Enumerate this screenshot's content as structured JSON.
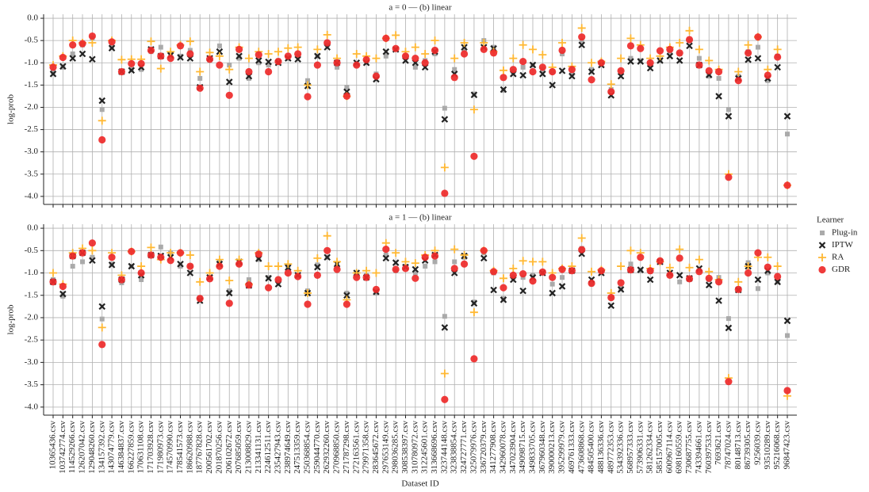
{
  "chart_data": [
    {
      "type": "dot",
      "title": "a = 0 — (b) linear",
      "ylabel": "log-prob",
      "ylim": [
        -4.18,
        0.09
      ],
      "yticks": [
        {
          "value": 0,
          "label": "0.0"
        },
        -0.5,
        {
          "value": -1,
          "label": "-1.0"
        },
        -1.5,
        {
          "value": -2,
          "label": "-2.0"
        },
        -2.5,
        {
          "value": -3,
          "label": "-3.0"
        },
        -3.5,
        {
          "value": -4,
          "label": "-4.0"
        }
      ],
      "grid": true,
      "series": [
        {
          "color": "#aaaaaa",
          "marker": "square",
          "values": [
            -1.2,
            -1.1,
            -0.8,
            -0.6,
            -0.45,
            -2.05,
            -0.65,
            -1.2,
            -1.15,
            -1.15,
            -0.75,
            -0.65,
            -0.8,
            -0.85,
            -0.72,
            -1.35,
            -0.95,
            -0.62,
            -1.05,
            -0.9,
            -1.35,
            -1.0,
            -1.05,
            -0.95,
            -0.9,
            -0.85,
            -1.4,
            -0.85,
            -0.6,
            -1.1,
            -1.55,
            -1.05,
            -1.0,
            -1.25,
            -0.85,
            -0.7,
            -0.85,
            -1.1,
            -0.95,
            -0.8,
            -2.02,
            -1.15,
            -0.7,
            -1.7,
            -0.5,
            -0.65,
            -1.62,
            -1.2,
            -1.1,
            -1.05,
            -1.15,
            -1.2,
            -0.8,
            -1.25,
            -0.5,
            -1.15,
            -1.0,
            -1.6,
            -1.2,
            -0.9,
            -0.95,
            -1.05,
            -0.95,
            -0.75,
            -0.8,
            -0.5,
            -0.9,
            -1.3,
            -1.35,
            -2.05,
            -1.3,
            -0.75,
            -0.65,
            -1.4,
            -0.85,
            -2.6
          ]
        },
        {
          "color": "#222222",
          "marker": "x",
          "values": [
            -1.25,
            -1.08,
            -0.9,
            -0.8,
            -0.92,
            -1.85,
            -0.67,
            -1.2,
            -1.17,
            -1.1,
            -0.7,
            -0.85,
            -0.83,
            -0.88,
            -0.9,
            -1.55,
            -0.9,
            -0.75,
            -1.43,
            -0.85,
            -1.3,
            -0.95,
            -0.98,
            -1.0,
            -0.9,
            -0.92,
            -1.52,
            -0.85,
            -0.65,
            -1.0,
            -1.65,
            -1.0,
            -1.0,
            -1.37,
            -0.75,
            -0.7,
            -0.95,
            -1.0,
            -1.1,
            -0.75,
            -2.27,
            -1.25,
            -0.65,
            -1.72,
            -0.65,
            -0.68,
            -1.6,
            -1.25,
            -1.28,
            -1.05,
            -1.25,
            -1.5,
            -1.18,
            -1.3,
            -0.6,
            -1.2,
            -1.05,
            -1.73,
            -1.3,
            -0.97,
            -0.97,
            -1.12,
            -0.95,
            -0.85,
            -0.95,
            -0.62,
            -1.05,
            -1.27,
            -1.75,
            -2.2,
            -1.35,
            -0.93,
            -0.9,
            -1.35,
            -1.1,
            -2.2
          ]
        },
        {
          "color": "#ffb833",
          "marker": "plus",
          "values": [
            -1.05,
            -0.85,
            -0.5,
            -0.55,
            -0.55,
            -2.3,
            -0.5,
            -0.93,
            -0.92,
            -0.92,
            -0.52,
            -1.13,
            -0.75,
            -0.6,
            -0.52,
            -1.2,
            -0.77,
            -0.85,
            -1.15,
            -0.65,
            -0.9,
            -0.75,
            -0.8,
            -0.75,
            -0.67,
            -0.65,
            -1.5,
            -0.7,
            -0.37,
            -0.9,
            -1.75,
            -0.8,
            -0.85,
            -0.9,
            -0.45,
            -0.38,
            -0.75,
            -0.65,
            -0.8,
            -0.5,
            -3.35,
            -0.9,
            -0.55,
            -2.05,
            -0.55,
            -0.75,
            -1.17,
            -0.9,
            -0.6,
            -0.7,
            -0.82,
            -1.1,
            -0.55,
            -1.08,
            -0.22,
            -1.0,
            -0.97,
            -1.48,
            -0.9,
            -0.45,
            -0.6,
            -0.9,
            -0.85,
            -0.65,
            -0.55,
            -0.28,
            -0.7,
            -0.95,
            -1.15,
            -3.5,
            -1.2,
            -0.6,
            -0.42,
            -1.15,
            -0.7,
            -3.75
          ]
        },
        {
          "color": "#ee2a2a",
          "marker": "circle",
          "values": [
            -1.1,
            -0.88,
            -0.6,
            -0.57,
            -0.4,
            -2.73,
            -0.53,
            -1.2,
            -1.02,
            -1.02,
            -0.72,
            -0.85,
            -0.9,
            -0.62,
            -0.8,
            -1.57,
            -0.92,
            -1.05,
            -1.73,
            -0.7,
            -1.2,
            -0.82,
            -1.2,
            -0.97,
            -0.85,
            -0.8,
            -1.76,
            -1.05,
            -0.55,
            -1.0,
            -1.75,
            -1.05,
            -0.93,
            -1.3,
            -0.45,
            -0.68,
            -0.85,
            -0.9,
            -1.0,
            -0.72,
            -3.93,
            -1.33,
            -0.8,
            -3.1,
            -0.7,
            -0.78,
            -1.33,
            -1.15,
            -0.97,
            -1.2,
            -1.1,
            -1.2,
            -0.72,
            -1.15,
            -0.42,
            -1.38,
            -1.0,
            -1.65,
            -1.18,
            -0.62,
            -0.68,
            -1.0,
            -0.73,
            -0.7,
            -0.78,
            -0.48,
            -1.05,
            -1.18,
            -1.2,
            -3.57,
            -1.4,
            -0.78,
            -0.42,
            -1.28,
            -0.87,
            -3.75
          ]
        }
      ]
    },
    {
      "type": "dot",
      "title": "a = 1 — (b) linear",
      "ylabel": "log-prob",
      "xlabel": "Dataset ID",
      "legend_title": "Learner",
      "legend": "outside right",
      "categories": [
        "10365436.csv",
        "103742774.csv",
        "114529266.csv",
        "126207042.csv",
        "129048260.csv",
        "134157392.csv",
        "143074779.csv",
        "146384837.csv",
        "166227859.csv",
        "170631108.csv",
        "171703928.csv",
        "171980973.csv",
        "174570990.csv",
        "178541573.csv",
        "186620988.csv",
        "187767828.csv",
        "200561702.csv",
        "201870256.csv",
        "206102672.csv",
        "207685059.csv",
        "213008829.csv",
        "213341131.csv",
        "224612511.csv",
        "235427943.csv",
        "238974649.csv",
        "247513359.csv",
        "250368854.csv",
        "259044770.csv",
        "262932260.csv",
        "270968850.csv",
        "271787298.csv",
        "272163561.csv",
        "279971358.csv",
        "283645672.csv",
        "297653149.csv",
        "298036285.csv",
        "308538397.csv",
        "310780972.csv",
        "312245601.csv",
        "313668696.csv",
        "323744148.csv",
        "323838854.csv",
        "324727771.csv",
        "325079976.csv",
        "336720379.csv",
        "341277908.csv",
        "342960078.csv",
        "347023904.csv",
        "349098715.csv",
        "349833705.csv",
        "367960348.csv",
        "390000213.csv",
        "395299979.csv",
        "469761333.csv",
        "473608868.csv",
        "484505400.csv",
        "488136336.csv",
        "489772353.csv",
        "534392336.csv",
        "568957333.csv",
        "573906331.csv",
        "581262334.csv",
        "585157005.csv",
        "600967114.csv",
        "698160559.csv",
        "730687755.csv",
        "743394661.csv",
        "760397533.csv",
        "7693621.csv",
        "78747024.csv",
        "80148713.csv",
        "86739305.csv",
        "9256039.csv",
        "93510289.csv",
        "95216068.csv",
        "96847423.csv"
      ],
      "ylim": [
        -4.18,
        0.09
      ],
      "yticks": [
        {
          "value": 0,
          "label": "0.0"
        },
        -0.5,
        {
          "value": -1,
          "label": "-1.0"
        },
        -1.5,
        {
          "value": -2,
          "label": "-2.0"
        },
        -2.5,
        {
          "value": -3,
          "label": "-3.0"
        },
        -3.5,
        {
          "value": -4,
          "label": "-4.0"
        }
      ],
      "grid": true,
      "series": [
        {
          "name": "Plug-in",
          "color": "#aaaaaa",
          "marker": "square",
          "values": [
            -1.15,
            -1.52,
            -0.85,
            -0.75,
            -0.65,
            -2.03,
            -0.8,
            -1.22,
            -0.85,
            -1.15,
            -0.6,
            -0.42,
            -0.55,
            -0.85,
            -0.85,
            -1.55,
            -1.1,
            -0.75,
            -1.4,
            -0.8,
            -1.15,
            -0.7,
            -1.1,
            -1.2,
            -0.85,
            -1.05,
            -1.4,
            -0.82,
            -0.65,
            -0.85,
            -1.45,
            -1.05,
            -1.05,
            -1.45,
            -0.6,
            -0.95,
            -0.85,
            -1.0,
            -0.85,
            -0.75,
            -1.97,
            -0.75,
            -0.65,
            -1.65,
            -0.55,
            -1.0,
            -1.57,
            -1.1,
            -1.1,
            -1.05,
            -1.0,
            -1.25,
            -1.1,
            -0.95,
            -0.45,
            -1.25,
            -1.0,
            -1.55,
            -1.35,
            -0.8,
            -0.95,
            -0.97,
            -0.75,
            -1.05,
            -1.2,
            -1.15,
            -0.95,
            -1.15,
            -1.1,
            -2.02,
            -1.35,
            -0.77,
            -1.35,
            -1.0,
            -1.2,
            -2.4
          ]
        },
        {
          "name": "IPTW",
          "color": "#222222",
          "marker": "x",
          "values": [
            -1.2,
            -1.47,
            -0.62,
            -0.55,
            -0.72,
            -1.75,
            -0.82,
            -1.15,
            -0.85,
            -1.05,
            -0.6,
            -0.62,
            -0.65,
            -0.8,
            -1.0,
            -1.62,
            -1.1,
            -0.8,
            -1.45,
            -0.75,
            -1.28,
            -0.68,
            -1.12,
            -1.25,
            -0.88,
            -1.05,
            -1.45,
            -0.87,
            -0.65,
            -0.8,
            -1.5,
            -1.0,
            -1.1,
            -1.42,
            -0.67,
            -0.77,
            -0.87,
            -0.92,
            -0.72,
            -0.6,
            -2.22,
            -1.0,
            -0.62,
            -1.68,
            -0.67,
            -1.38,
            -1.6,
            -1.15,
            -1.4,
            -1.1,
            -1.0,
            -1.45,
            -1.3,
            -0.95,
            -0.57,
            -1.15,
            -1.0,
            -1.73,
            -1.37,
            -0.93,
            -0.93,
            -1.15,
            -0.75,
            -1.0,
            -1.05,
            -1.12,
            -0.9,
            -1.27,
            -1.62,
            -2.23,
            -1.38,
            -0.85,
            -1.15,
            -0.95,
            -1.2,
            -2.07
          ]
        },
        {
          "name": "RA",
          "color": "#ffb833",
          "marker": "plus",
          "values": [
            -1.0,
            -1.25,
            -0.55,
            -0.45,
            -0.5,
            -2.22,
            -0.55,
            -1.05,
            -0.52,
            -0.85,
            -0.43,
            -0.7,
            -0.55,
            -0.55,
            -0.6,
            -1.2,
            -1.0,
            -0.7,
            -1.17,
            -0.7,
            -1.25,
            -0.55,
            -0.85,
            -0.85,
            -0.8,
            -0.95,
            -1.45,
            -0.67,
            -0.17,
            -0.75,
            -1.6,
            -1.0,
            -0.95,
            -1.0,
            -0.33,
            -0.55,
            -0.75,
            -0.78,
            -0.6,
            -0.5,
            -3.25,
            -0.47,
            -0.6,
            -1.88,
            -0.5,
            -0.95,
            -1.12,
            -0.9,
            -0.73,
            -0.75,
            -0.75,
            -1.0,
            -0.9,
            -0.85,
            -0.22,
            -0.97,
            -0.93,
            -1.45,
            -0.85,
            -0.5,
            -0.55,
            -0.9,
            -0.75,
            -0.88,
            -0.47,
            -0.88,
            -0.7,
            -0.97,
            -1.15,
            -3.35,
            -1.2,
            -0.85,
            -0.65,
            -0.65,
            -0.85,
            -3.75
          ]
        },
        {
          "name": "GDR",
          "color": "#ee2a2a",
          "marker": "circle",
          "values": [
            -1.2,
            -1.3,
            -0.62,
            -0.55,
            -0.33,
            -2.6,
            -0.65,
            -1.15,
            -0.52,
            -1.0,
            -0.6,
            -0.65,
            -0.72,
            -0.55,
            -0.85,
            -1.57,
            -1.13,
            -0.85,
            -1.68,
            -0.8,
            -1.27,
            -0.58,
            -1.33,
            -1.15,
            -1.0,
            -1.08,
            -1.7,
            -1.05,
            -0.5,
            -0.92,
            -1.7,
            -1.1,
            -1.1,
            -1.37,
            -0.47,
            -0.92,
            -0.9,
            -1.12,
            -0.65,
            -0.62,
            -3.83,
            -0.9,
            -0.8,
            -2.92,
            -0.5,
            -0.97,
            -1.33,
            -1.05,
            -1.02,
            -1.18,
            -0.98,
            -1.1,
            -0.92,
            -0.95,
            -0.48,
            -1.23,
            -0.95,
            -1.55,
            -1.22,
            -0.93,
            -0.65,
            -0.95,
            -0.73,
            -1.05,
            -0.67,
            -1.13,
            -0.97,
            -1.12,
            -1.2,
            -3.43,
            -1.37,
            -1.0,
            -0.55,
            -0.87,
            -1.08,
            -3.63
          ]
        }
      ]
    }
  ]
}
